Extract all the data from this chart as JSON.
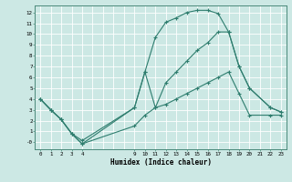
{
  "xlabel": "Humidex (Indice chaleur)",
  "bg_color": "#cce8e4",
  "grid_color": "#ffffff",
  "line_color": "#2e7d6e",
  "xlim": [
    -0.5,
    23.5
  ],
  "ylim": [
    -0.65,
    12.65
  ],
  "xtick_vals": [
    0,
    1,
    2,
    3,
    4,
    9,
    10,
    11,
    12,
    13,
    14,
    15,
    16,
    17,
    18,
    19,
    20,
    21,
    22,
    23
  ],
  "ytick_vals": [
    0,
    1,
    2,
    3,
    4,
    5,
    6,
    7,
    8,
    9,
    10,
    11,
    12
  ],
  "ytick_labels": [
    "-0",
    "1",
    "2",
    "3",
    "4",
    "5",
    "6",
    "7",
    "8",
    "9",
    "10",
    "11",
    "12"
  ],
  "all_x_gridlines": [
    0,
    1,
    2,
    3,
    4,
    5,
    6,
    7,
    8,
    9,
    10,
    11,
    12,
    13,
    14,
    15,
    16,
    17,
    18,
    19,
    20,
    21,
    22,
    23
  ],
  "curve1_x": [
    0,
    1,
    2,
    3,
    4,
    9,
    10,
    11,
    12,
    13,
    14,
    15,
    16,
    17,
    18,
    19,
    20,
    22,
    23
  ],
  "curve1_y": [
    4.0,
    3.0,
    2.1,
    0.8,
    0.15,
    3.2,
    6.5,
    9.7,
    11.1,
    11.5,
    12.0,
    12.2,
    12.2,
    11.9,
    10.2,
    7.0,
    5.0,
    3.2,
    2.8
  ],
  "curve2_x": [
    0,
    1,
    2,
    3,
    4,
    9,
    10,
    11,
    12,
    13,
    14,
    15,
    16,
    17,
    18,
    19,
    20,
    22,
    23
  ],
  "curve2_y": [
    4.0,
    3.0,
    2.1,
    0.8,
    -0.15,
    3.2,
    6.5,
    3.2,
    5.5,
    6.5,
    7.5,
    8.5,
    9.2,
    10.2,
    10.2,
    7.0,
    5.0,
    3.2,
    2.8
  ],
  "curve3_x": [
    0,
    1,
    2,
    3,
    4,
    9,
    10,
    11,
    12,
    13,
    14,
    15,
    16,
    17,
    18,
    19,
    20,
    22,
    23
  ],
  "curve3_y": [
    4.0,
    3.0,
    2.1,
    0.8,
    -0.15,
    1.5,
    2.5,
    3.2,
    3.5,
    4.0,
    4.5,
    5.0,
    5.5,
    6.0,
    6.5,
    4.5,
    2.5,
    2.5,
    2.5
  ]
}
